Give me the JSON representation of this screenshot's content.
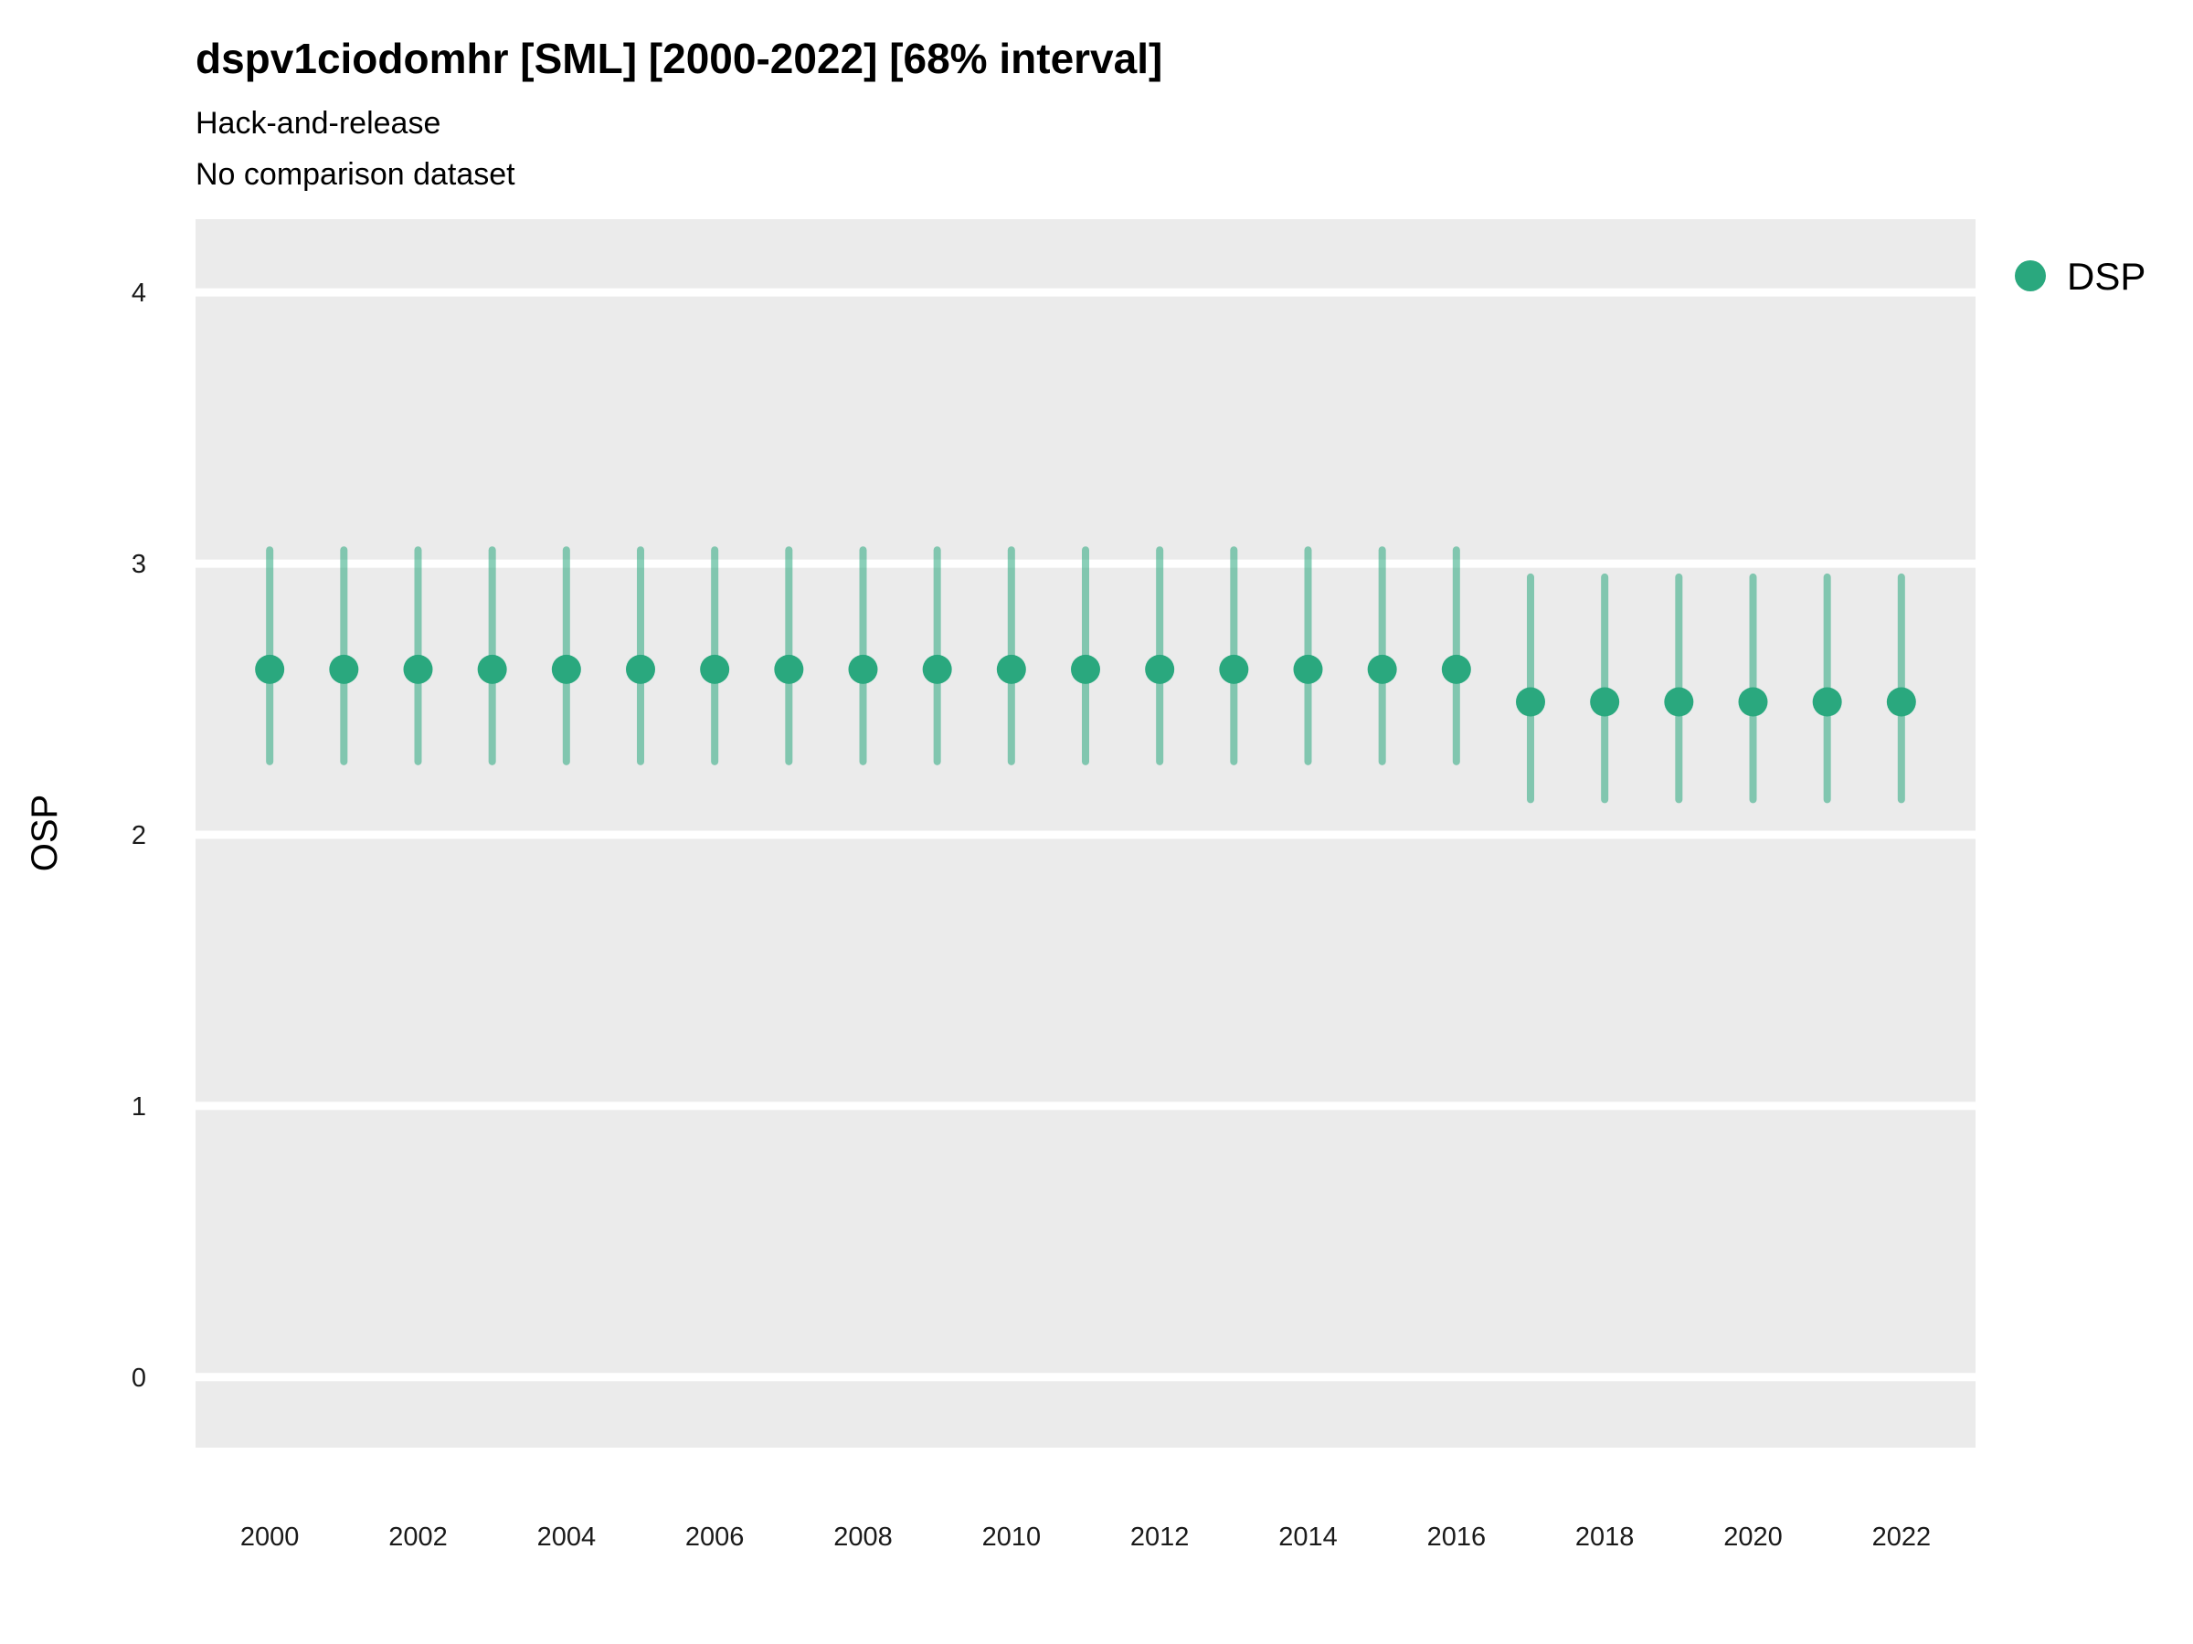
{
  "header": {
    "title": "dspv1ciodomhr [SML] [2000-2022] [68% interval]",
    "subtitle1": "Hack-and-release",
    "subtitle2": "No comparison dataset"
  },
  "axes": {
    "ylabel": "OSP"
  },
  "legend": {
    "label": "DSP"
  },
  "colors": {
    "point": "#2aa87e",
    "errorbar": "#2aa87e",
    "errorbar_opacity": "0.55",
    "panel": "#ebebeb",
    "grid": "#ffffff",
    "text": "#000000"
  },
  "chart_data": {
    "type": "scatter",
    "title": "dspv1ciodomhr [SML] [2000-2022] [68% interval]",
    "subtitle": [
      "Hack-and-release",
      "No comparison dataset"
    ],
    "xlabel": "",
    "ylabel": "OSP",
    "interval": "68%",
    "legend_position": "right",
    "grid": "major-horizontal-white",
    "xlim": [
      1999,
      2023
    ],
    "ylim": [
      -0.26,
      4.27
    ],
    "yticks": [
      0,
      1,
      2,
      3,
      4
    ],
    "xticks": [
      2000,
      2002,
      2004,
      2006,
      2008,
      2010,
      2012,
      2014,
      2016,
      2018,
      2020,
      2022
    ],
    "series": [
      {
        "name": "DSP",
        "x": [
          2000,
          2001,
          2002,
          2003,
          2004,
          2005,
          2006,
          2007,
          2008,
          2009,
          2010,
          2011,
          2012,
          2013,
          2014,
          2015,
          2016,
          2017,
          2018,
          2019,
          2020,
          2021,
          2022
        ],
        "y": [
          2.61,
          2.61,
          2.61,
          2.61,
          2.61,
          2.61,
          2.61,
          2.61,
          2.61,
          2.61,
          2.61,
          2.61,
          2.61,
          2.61,
          2.61,
          2.61,
          2.61,
          2.49,
          2.49,
          2.49,
          2.49,
          2.49,
          2.49
        ],
        "y_low": [
          2.27,
          2.27,
          2.27,
          2.27,
          2.27,
          2.27,
          2.27,
          2.27,
          2.27,
          2.27,
          2.27,
          2.27,
          2.27,
          2.27,
          2.27,
          2.27,
          2.27,
          2.13,
          2.13,
          2.13,
          2.13,
          2.13,
          2.13
        ],
        "y_high": [
          3.05,
          3.05,
          3.05,
          3.05,
          3.05,
          3.05,
          3.05,
          3.05,
          3.05,
          3.05,
          3.05,
          3.05,
          3.05,
          3.05,
          3.05,
          3.05,
          3.05,
          2.95,
          2.95,
          2.95,
          2.95,
          2.95,
          2.95
        ]
      }
    ]
  }
}
